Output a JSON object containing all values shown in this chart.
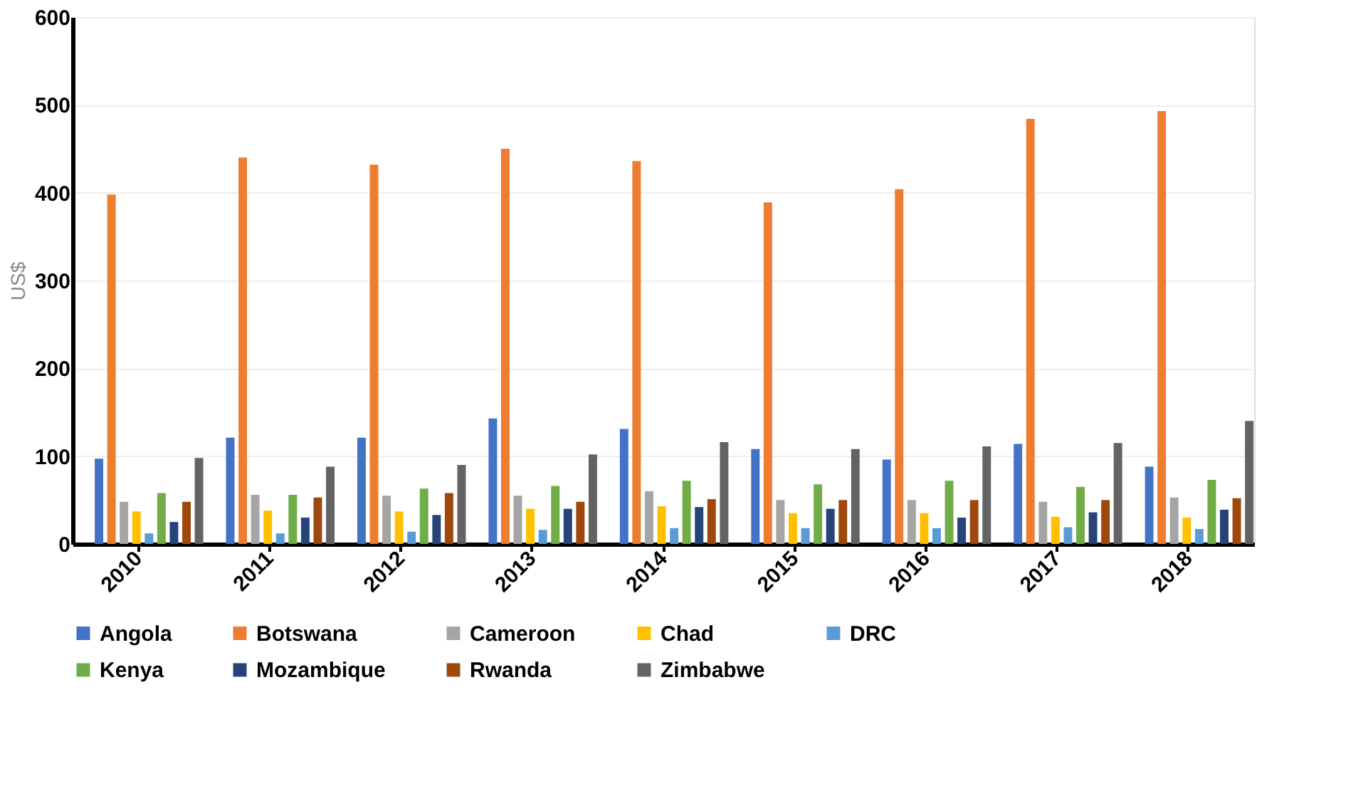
{
  "chart_data": {
    "type": "bar",
    "ylabel": "US$",
    "categories": [
      "2010",
      "2011",
      "2012",
      "2013",
      "2014",
      "2015",
      "2016",
      "2017",
      "2018"
    ],
    "ylim": [
      0,
      600
    ],
    "yticks": [
      0,
      100,
      200,
      300,
      400,
      500,
      600
    ],
    "grid": "y",
    "legend": "bottom",
    "series": [
      {
        "name": "Angola",
        "color": "#4472c4",
        "values": [
          97,
          121,
          121,
          143,
          131,
          108,
          96,
          114,
          88
        ]
      },
      {
        "name": "Botswana",
        "color": "#ed7d31",
        "values": [
          398,
          440,
          432,
          450,
          436,
          389,
          404,
          484,
          493
        ]
      },
      {
        "name": "Cameroon",
        "color": "#a5a5a5",
        "values": [
          48,
          56,
          55,
          55,
          60,
          50,
          50,
          48,
          53
        ]
      },
      {
        "name": "Chad",
        "color": "#ffc000",
        "values": [
          37,
          38,
          37,
          40,
          43,
          35,
          35,
          31,
          30
        ]
      },
      {
        "name": "DRC",
        "color": "#5b9bd5",
        "values": [
          12,
          12,
          14,
          16,
          18,
          18,
          18,
          19,
          17
        ]
      },
      {
        "name": "Kenya",
        "color": "#70ad47",
        "values": [
          58,
          56,
          63,
          66,
          72,
          68,
          72,
          65,
          73
        ]
      },
      {
        "name": "Mozambique",
        "color": "#264478",
        "values": [
          25,
          30,
          33,
          40,
          42,
          40,
          30,
          36,
          39
        ]
      },
      {
        "name": "Rwanda",
        "color": "#9e480e",
        "values": [
          48,
          53,
          58,
          48,
          51,
          50,
          50,
          50,
          52
        ]
      },
      {
        "name": "Zimbabwe",
        "color": "#636363",
        "values": [
          98,
          88,
          90,
          102,
          116,
          108,
          111,
          115,
          140
        ]
      }
    ]
  }
}
